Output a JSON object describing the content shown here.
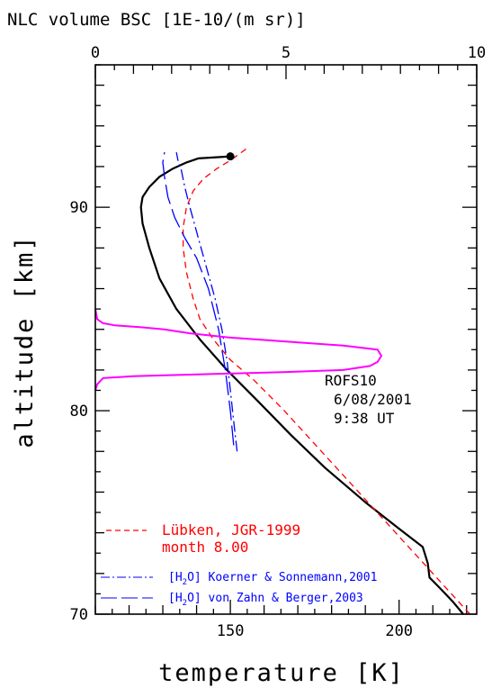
{
  "chart_data": {
    "type": "line",
    "title": "",
    "top_axis": {
      "label": "NLC volume BSC [1E-10/(m sr)]",
      "range": [
        0,
        10
      ],
      "ticks": [
        "0",
        "5",
        "10"
      ]
    },
    "xlabel": "temperature [K]",
    "ylabel": "altitude [km]",
    "xlim": [
      110,
      223
    ],
    "ylim": [
      70,
      97
    ],
    "x_ticks": [
      "150",
      "200"
    ],
    "y_ticks": [
      "70",
      "80",
      "90"
    ],
    "annotation": [
      "ROFS10",
      "6/08/2001",
      "9:38 UT"
    ],
    "series": [
      {
        "name": "",
        "axis": "temperature",
        "color": "#000000",
        "style": "solid",
        "x": [
          219,
          216,
          212,
          209,
          208.5,
          207,
          200,
          190,
          178,
          168,
          158,
          149,
          141,
          134,
          129,
          126,
          124,
          123.5,
          124,
          126,
          129,
          133,
          137,
          140.5,
          150
        ],
        "y": [
          70,
          70.6,
          71.3,
          71.8,
          72.5,
          73.3,
          74.2,
          75.5,
          77.2,
          78.8,
          80.5,
          82,
          83.5,
          85,
          86.5,
          88,
          89.2,
          90,
          90.5,
          91,
          91.5,
          91.9,
          92.2,
          92.4,
          92.5
        ]
      },
      {
        "name": "Lübken, JGR-1999 month 8.00",
        "axis": "temperature",
        "color": "#ff0000",
        "style": "dashed",
        "x": [
          221,
          210,
          199,
          188,
          177,
          166,
          157,
          150,
          145,
          141,
          139,
          137,
          136,
          136,
          137,
          139,
          142,
          146,
          150,
          155
        ],
        "y": [
          70,
          72,
          74,
          76,
          78,
          80,
          81.5,
          82.5,
          83.5,
          84.5,
          85.5,
          86.8,
          88,
          89,
          90,
          90.8,
          91.4,
          91.9,
          92.3,
          92.9
        ]
      },
      {
        "name": "[H2O] Koerner & Sonnemann,2001",
        "axis": "temperature",
        "color": "#0000ff",
        "style": "dashdot",
        "x": [
          152,
          151,
          150,
          149,
          147.5,
          145.5,
          143,
          140.5,
          138,
          136.5,
          135.5,
          134.5,
          134
        ],
        "y": [
          78,
          79.5,
          81,
          82.5,
          84,
          85.5,
          87,
          88.5,
          90,
          91,
          91.8,
          92.3,
          92.7
        ]
      },
      {
        "name": "[H2O] von Zahn & Berger,2003",
        "axis": "temperature",
        "color": "#0000ff",
        "style": "longdash",
        "x": [
          151,
          150,
          148.5,
          146.5,
          143.5,
          140,
          136.5,
          133.5,
          131.5,
          130.5,
          130,
          130.5
        ],
        "y": [
          78.3,
          80,
          82,
          84,
          86,
          87.5,
          88.5,
          89.5,
          90.5,
          91.5,
          92.2,
          92.7
        ]
      },
      {
        "name": "",
        "axis": "bsc",
        "color": "#ff00ff",
        "style": "solid",
        "x": [
          0,
          0.05,
          0.2,
          1,
          3,
          5,
          6.5,
          7.2,
          7.4,
          7.5,
          7.4,
          6.5,
          5,
          3.5,
          2.5,
          1.8,
          1.2,
          0.5,
          0.2,
          0.05,
          0
        ],
        "y": [
          81,
          81.3,
          81.6,
          81.7,
          81.8,
          81.9,
          82,
          82.2,
          82.4,
          82.7,
          83,
          83.2,
          83.4,
          83.6,
          83.8,
          84,
          84.1,
          84.2,
          84.3,
          84.5,
          85
        ]
      }
    ]
  },
  "legend": {
    "red_line1": "Lübken, JGR-1999",
    "red_line2": "month 8.00",
    "blue1_pre": "[H",
    "blue1_sub": "2",
    "blue1_post": "O] Koerner & Sonnemann,2001",
    "blue2_pre": "[H",
    "blue2_sub": "2",
    "blue2_post": "O] von Zahn & Berger,2003"
  }
}
